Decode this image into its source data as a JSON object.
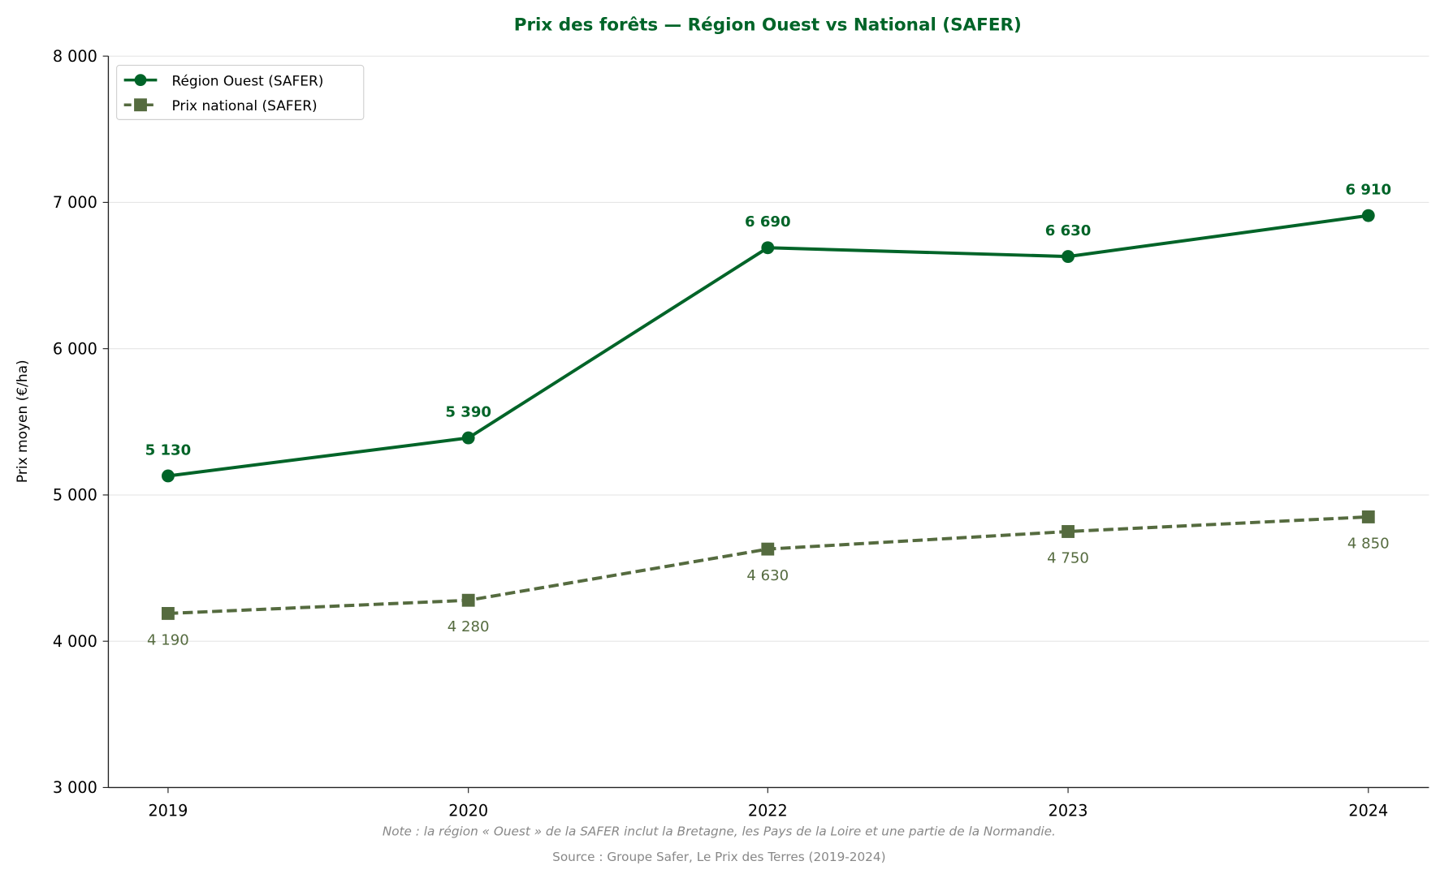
{
  "chart_data": {
    "type": "line",
    "title": "Prix des forêts — Région Ouest vs National (SAFER)",
    "xlabel": "",
    "ylabel": "Prix moyen (€/ha)",
    "categories": [
      "2019",
      "2020",
      "2022",
      "2023",
      "2024"
    ],
    "ylim": [
      3000,
      8000
    ],
    "yticks": [
      3000,
      4000,
      5000,
      6000,
      7000,
      8000
    ],
    "ytick_labels": [
      "3 000",
      "4 000",
      "5 000",
      "6 000",
      "7 000",
      "8 000"
    ],
    "grid": "horizontal",
    "legend_position": "top-left",
    "series": [
      {
        "name": "Région Ouest (SAFER)",
        "values": [
          5130,
          5390,
          6690,
          6630,
          6910
        ],
        "labels": [
          "5 130",
          "5 390",
          "6 690",
          "6 630",
          "6 910"
        ],
        "color": "#006428",
        "marker": "circle",
        "style": "solid"
      },
      {
        "name": "Prix national (SAFER)",
        "values": [
          4190,
          4280,
          4630,
          4750,
          4850
        ],
        "labels": [
          "4 190",
          "4 280",
          "4 630",
          "4 750",
          "4 850"
        ],
        "color": "#556b3f",
        "marker": "square",
        "style": "dashed"
      }
    ],
    "note": "Note : la région « Ouest » de la SAFER inclut la Bretagne, les Pays de la Loire et une partie de la Normandie.",
    "source": "Source : Groupe Safer, Le Prix des Terres (2019-2024)"
  }
}
